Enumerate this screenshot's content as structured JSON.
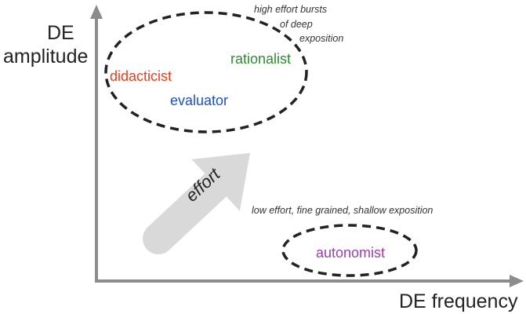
{
  "axes": {
    "y_label_line1": "DE",
    "y_label_line2": "amplitude",
    "x_label": "DE frequency",
    "color": "#8c8c8c"
  },
  "regions": {
    "high": {
      "roles": [
        {
          "key": "didacticist",
          "label": "didacticist",
          "color": "#e8401c"
        },
        {
          "key": "rationalist",
          "label": "rationalist",
          "color": "#2e8b2e"
        },
        {
          "key": "evaluator",
          "label": "evaluator",
          "color": "#1f4fbf"
        }
      ],
      "note_lines": [
        "high effort bursts",
        "of deep",
        "exposition"
      ]
    },
    "low": {
      "roles": [
        {
          "key": "autonomist",
          "label": "autonomist",
          "color": "#9b3fae"
        }
      ],
      "note": "low effort, fine grained, shallow exposition"
    }
  },
  "effort": {
    "label": "effort",
    "color": "#d9d9d9"
  }
}
